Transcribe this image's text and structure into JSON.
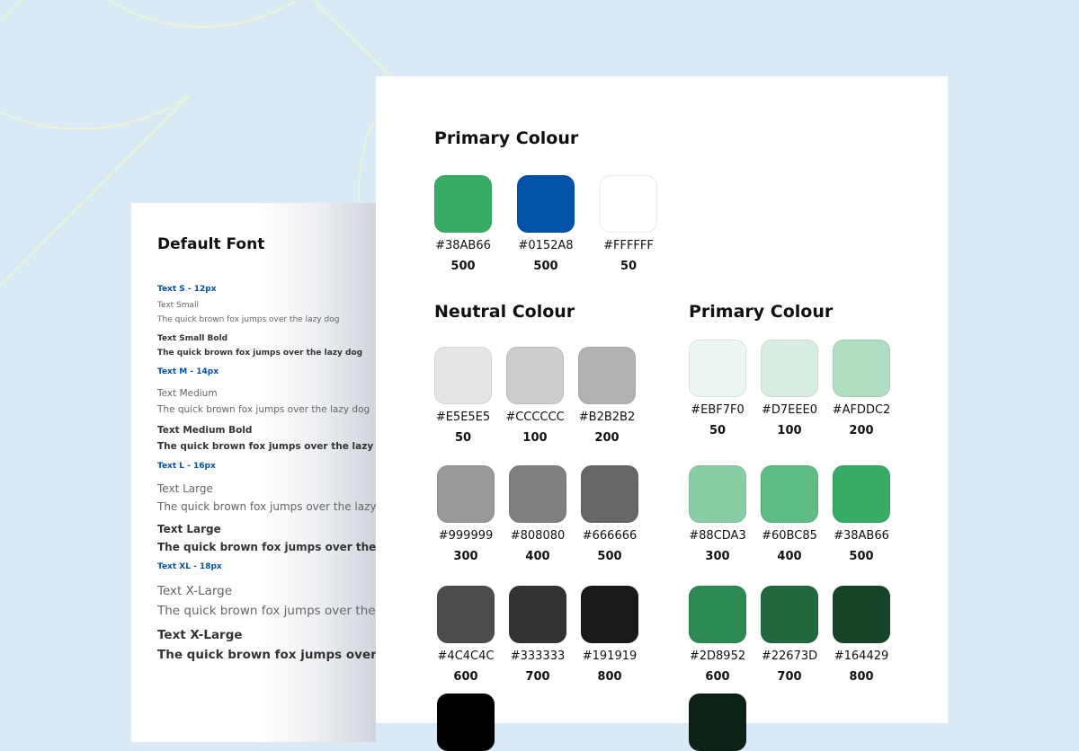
{
  "background": {
    "color": "#DAE9F6",
    "line_color": "#EEF6C8"
  },
  "font_card": {
    "title": "Default Font",
    "items": [
      {
        "text": "Text S - 12px",
        "kind": "label"
      },
      {
        "text": "Text Small",
        "kind": "regular"
      },
      {
        "text": "The quick brown fox jumps over the lazy dog",
        "kind": "regular"
      },
      {
        "text": "Text Small Bold",
        "kind": "bold"
      },
      {
        "text": "The quick brown fox jumps over the lazy dog",
        "kind": "bold"
      },
      {
        "text": "Text M - 14px",
        "kind": "label"
      },
      {
        "text": "Text Medium",
        "kind": "regular"
      },
      {
        "text": "The quick brown fox jumps over the lazy dog",
        "kind": "regular"
      },
      {
        "text": "Text Medium Bold",
        "kind": "bold"
      },
      {
        "text": "The quick brown fox jumps over the lazy dog",
        "kind": "bold"
      },
      {
        "text": "Text L -  16px",
        "kind": "label"
      },
      {
        "text": "Text Large",
        "kind": "regular"
      },
      {
        "text": "The quick brown fox jumps over the lazy dog",
        "kind": "regular"
      },
      {
        "text": "Text Large",
        "kind": "bold"
      },
      {
        "text": "The quick brown fox jumps over the lazy dog",
        "kind": "bold"
      },
      {
        "text": "Text XL - 18px",
        "kind": "label"
      },
      {
        "text": "Text X-Large",
        "kind": "regular"
      },
      {
        "text": "The quick brown fox jumps over the lazy dog",
        "kind": "regular"
      },
      {
        "text": "Text X-Large",
        "kind": "bold"
      },
      {
        "text": "The quick brown fox jumps over the lazy dog",
        "kind": "bold"
      }
    ]
  },
  "colour_card": {
    "primary": {
      "title": "Primary Colour",
      "swatches": [
        {
          "hex": "#38AB66",
          "level": "500"
        },
        {
          "hex": "#0152A8",
          "level": "500"
        },
        {
          "hex": "#FFFFFF",
          "level": "50"
        }
      ]
    },
    "neutral": {
      "title": "Neutral Colour",
      "swatches": [
        {
          "hex": "#E5E5E5",
          "level": "50"
        },
        {
          "hex": "#CCCCCC",
          "level": "100"
        },
        {
          "hex": "#B2B2B2",
          "level": "200"
        },
        {
          "hex": "#999999",
          "level": "300"
        },
        {
          "hex": "#808080",
          "level": "400"
        },
        {
          "hex": "#666666",
          "level": "500"
        },
        {
          "hex": "#4C4C4C",
          "level": "600"
        },
        {
          "hex": "#333333",
          "level": "700"
        },
        {
          "hex": "#191919",
          "level": "800"
        }
      ],
      "partial_swatch_color": "#000000"
    },
    "green": {
      "title": "Primary Colour",
      "swatches": [
        {
          "hex": "#EBF7F0",
          "level": "50"
        },
        {
          "hex": "#D7EEE0",
          "level": "100"
        },
        {
          "hex": "#AFDDC2",
          "level": "200"
        },
        {
          "hex": "#88CDA3",
          "level": "300"
        },
        {
          "hex": "#60BC85",
          "level": "400"
        },
        {
          "hex": "#38AB66",
          "level": "500"
        },
        {
          "hex": "#2D8952",
          "level": "600"
        },
        {
          "hex": "#22673D",
          "level": "700"
        },
        {
          "hex": "#164429",
          "level": "800"
        }
      ],
      "partial_swatch_color": "#0D2216"
    }
  }
}
